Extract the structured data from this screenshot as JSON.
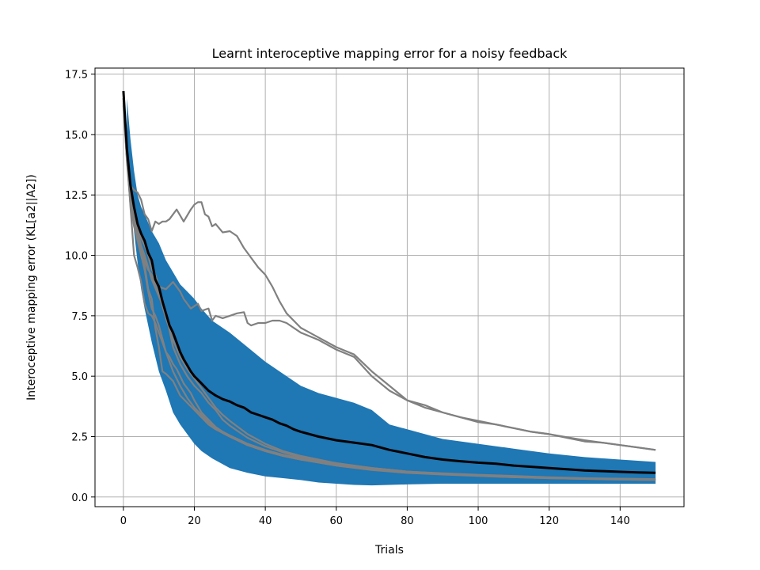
{
  "chart_data": {
    "type": "line",
    "title": "Learnt interoceptive mapping error for a noisy feedback",
    "xlabel": "Trials",
    "ylabel": "Interoceptive mapping error (KL[a2||A2])",
    "xlim": [
      -8,
      158
    ],
    "ylim": [
      -0.4,
      17.75
    ],
    "xticks": [
      0,
      20,
      40,
      60,
      80,
      100,
      120,
      140
    ],
    "yticks": [
      0.0,
      2.5,
      5.0,
      7.5,
      10.0,
      12.5,
      15.0,
      17.5
    ],
    "xtick_labels": [
      "0",
      "20",
      "40",
      "60",
      "80",
      "100",
      "120",
      "140"
    ],
    "ytick_labels": [
      "0.0",
      "2.5",
      "5.0",
      "7.5",
      "10.0",
      "12.5",
      "15.0",
      "17.5"
    ],
    "grid": true,
    "colors": {
      "band": "#1f77b4",
      "individual": "#808080",
      "mean": "#000000",
      "grid": "#b0b0b0"
    },
    "band": {
      "x": [
        1,
        2,
        3,
        4,
        5,
        6,
        8,
        10,
        12,
        14,
        16,
        18,
        20,
        22,
        25,
        30,
        35,
        40,
        45,
        50,
        55,
        60,
        65,
        70,
        75,
        80,
        90,
        100,
        110,
        120,
        130,
        140,
        150
      ],
      "lower": [
        14.5,
        12.8,
        11.0,
        9.7,
        8.6,
        7.8,
        6.4,
        5.2,
        4.4,
        3.5,
        3.0,
        2.6,
        2.2,
        1.9,
        1.6,
        1.2,
        1.0,
        0.85,
        0.78,
        0.7,
        0.6,
        0.55,
        0.5,
        0.48,
        0.5,
        0.52,
        0.55,
        0.55,
        0.55,
        0.55,
        0.55,
        0.55,
        0.55
      ],
      "upper": [
        16.5,
        14.8,
        13.5,
        12.5,
        12.0,
        11.7,
        11.0,
        10.5,
        9.8,
        9.3,
        8.8,
        8.5,
        8.2,
        7.8,
        7.3,
        6.8,
        6.2,
        5.6,
        5.1,
        4.6,
        4.3,
        4.1,
        3.9,
        3.6,
        3.0,
        2.8,
        2.4,
        2.2,
        2.0,
        1.8,
        1.65,
        1.55,
        1.45
      ]
    },
    "series": [
      {
        "role": "run",
        "x": [
          0,
          1,
          2,
          3,
          4,
          5,
          6,
          7,
          8,
          9,
          10,
          11,
          12,
          13,
          15,
          17,
          19,
          20,
          21,
          22,
          23,
          24,
          25,
          26,
          28,
          30,
          32,
          34,
          36,
          38,
          40,
          42,
          44,
          46,
          48,
          50,
          55,
          60,
          65,
          70,
          75,
          80,
          85,
          90,
          95,
          100,
          105,
          110,
          115,
          120,
          125,
          130,
          135,
          140,
          145,
          150
        ],
        "y": [
          16.5,
          14.0,
          12.9,
          12.7,
          12.6,
          12.3,
          11.7,
          11.5,
          11.0,
          11.4,
          11.3,
          11.4,
          11.4,
          11.5,
          11.9,
          11.4,
          11.9,
          12.1,
          12.2,
          12.2,
          11.7,
          11.6,
          11.2,
          11.3,
          10.95,
          11.0,
          10.8,
          10.3,
          9.9,
          9.5,
          9.2,
          8.7,
          8.1,
          7.6,
          7.3,
          7.0,
          6.6,
          6.2,
          5.9,
          5.2,
          4.6,
          4.0,
          3.8,
          3.5,
          3.3,
          3.1,
          3.0,
          2.85,
          2.7,
          2.6,
          2.45,
          2.3,
          2.25,
          2.15,
          2.05,
          1.95
        ]
      },
      {
        "role": "run",
        "x": [
          0,
          1,
          2,
          3,
          4,
          5,
          6,
          7,
          8,
          9,
          10,
          12,
          14,
          16,
          17,
          18,
          19,
          20,
          21,
          22,
          23,
          24,
          25,
          26,
          28,
          30,
          32,
          34,
          35,
          36,
          38,
          40,
          42,
          44,
          46,
          48,
          50,
          55,
          60,
          65,
          70,
          75,
          80,
          85,
          90,
          95,
          100,
          105,
          110,
          115,
          120,
          130,
          140,
          150
        ],
        "y": [
          16.5,
          14.5,
          12.6,
          11.8,
          11.3,
          10.7,
          10.4,
          10.0,
          9.4,
          9.2,
          8.7,
          8.6,
          8.9,
          8.5,
          8.2,
          8.0,
          7.8,
          7.9,
          8.0,
          7.7,
          7.75,
          7.8,
          7.3,
          7.5,
          7.4,
          7.5,
          7.6,
          7.65,
          7.2,
          7.1,
          7.2,
          7.2,
          7.3,
          7.3,
          7.2,
          7.0,
          6.8,
          6.5,
          6.1,
          5.8,
          5.0,
          4.4,
          4.0,
          3.7,
          3.5,
          3.3,
          3.15,
          3.0,
          2.85,
          2.7,
          2.6,
          2.35,
          2.15,
          1.95
        ]
      },
      {
        "role": "run",
        "x": [
          0,
          1,
          2,
          3,
          4,
          5,
          6,
          7,
          8,
          9,
          10,
          11,
          12,
          13,
          14,
          15,
          16,
          17,
          18,
          19,
          20,
          22,
          24,
          26,
          28,
          30,
          35,
          40,
          45,
          50,
          55,
          60,
          70,
          80,
          90,
          100,
          110,
          120,
          130,
          140,
          150
        ],
        "y": [
          16.5,
          14.2,
          12.0,
          10.0,
          9.5,
          8.9,
          8.0,
          7.6,
          7.5,
          7.2,
          6.8,
          6.4,
          6.0,
          5.8,
          5.5,
          5.3,
          5.0,
          4.7,
          4.5,
          4.3,
          4.0,
          3.5,
          3.2,
          2.9,
          2.7,
          2.55,
          2.2,
          1.95,
          1.75,
          1.6,
          1.5,
          1.4,
          1.2,
          1.05,
          0.98,
          0.92,
          0.87,
          0.82,
          0.78,
          0.76,
          0.74
        ]
      },
      {
        "role": "run",
        "x": [
          0,
          1,
          2,
          3,
          4,
          5,
          6,
          7,
          8,
          9,
          10,
          11,
          12,
          14,
          16,
          18,
          20,
          22,
          24,
          26,
          28,
          30,
          35,
          40,
          45,
          50,
          60,
          70,
          80,
          90,
          100,
          110,
          120,
          130,
          140,
          150
        ],
        "y": [
          16.3,
          14.0,
          12.2,
          11.5,
          10.8,
          10.3,
          9.6,
          8.6,
          8.2,
          7.0,
          6.2,
          5.2,
          5.1,
          4.8,
          4.2,
          3.9,
          3.6,
          3.3,
          3.0,
          2.8,
          2.65,
          2.5,
          2.15,
          1.9,
          1.7,
          1.55,
          1.3,
          1.15,
          1.0,
          0.95,
          0.88,
          0.82,
          0.78,
          0.75,
          0.72,
          0.7
        ]
      },
      {
        "role": "run",
        "x": [
          0,
          1,
          2,
          3,
          4,
          5,
          6,
          7,
          8,
          10,
          12,
          14,
          16,
          18,
          20,
          22,
          24,
          26,
          28,
          30,
          32,
          35,
          40,
          45,
          50,
          60,
          70,
          80,
          90,
          100,
          110,
          120,
          130,
          140,
          150
        ],
        "y": [
          16.4,
          14.1,
          12.4,
          11.6,
          11.0,
          10.4,
          10.0,
          9.5,
          9.0,
          8.3,
          7.6,
          6.2,
          5.5,
          5.0,
          4.6,
          4.3,
          3.9,
          3.6,
          3.2,
          2.95,
          2.75,
          2.45,
          2.1,
          1.85,
          1.65,
          1.35,
          1.2,
          1.05,
          0.97,
          0.9,
          0.85,
          0.8,
          0.77,
          0.75,
          0.73
        ]
      },
      {
        "role": "run",
        "x": [
          0,
          1,
          2,
          3,
          4,
          5,
          6,
          7,
          8,
          9,
          10,
          12,
          14,
          16,
          18,
          20,
          22,
          24,
          26,
          28,
          30,
          35,
          40,
          45,
          50,
          60,
          70,
          80,
          90,
          100,
          110,
          120,
          130,
          140,
          150
        ],
        "y": [
          16.5,
          14.3,
          12.3,
          11.4,
          10.9,
          10.2,
          9.8,
          9.4,
          9.2,
          8.8,
          8.4,
          7.4,
          6.5,
          5.8,
          5.3,
          4.9,
          4.5,
          4.1,
          3.7,
          3.4,
          3.15,
          2.6,
          2.2,
          1.9,
          1.7,
          1.4,
          1.2,
          1.05,
          0.97,
          0.9,
          0.84,
          0.79,
          0.76,
          0.74,
          0.72
        ]
      },
      {
        "role": "run",
        "x": [
          0,
          1,
          2,
          3,
          4,
          5,
          6,
          7,
          8,
          9,
          10,
          12,
          14,
          16,
          18,
          20,
          22,
          24,
          26,
          28,
          30,
          35,
          40,
          45,
          50,
          60,
          70,
          80,
          90,
          100,
          110,
          120,
          130,
          140,
          150
        ],
        "y": [
          16.2,
          13.9,
          12.1,
          11.2,
          10.6,
          10.0,
          9.4,
          8.5,
          7.8,
          7.5,
          7.1,
          6.0,
          5.2,
          4.6,
          4.1,
          3.7,
          3.4,
          3.1,
          2.85,
          2.65,
          2.5,
          2.15,
          1.9,
          1.7,
          1.55,
          1.3,
          1.12,
          1.0,
          0.93,
          0.87,
          0.82,
          0.78,
          0.75,
          0.72,
          0.7
        ]
      },
      {
        "role": "mean",
        "x": [
          0,
          1,
          2,
          3,
          4,
          5,
          6,
          7,
          8,
          9,
          10,
          11,
          12,
          13,
          14,
          15,
          16,
          17,
          18,
          19,
          20,
          22,
          24,
          26,
          28,
          30,
          32,
          34,
          36,
          38,
          40,
          42,
          44,
          46,
          48,
          50,
          55,
          60,
          65,
          70,
          75,
          80,
          85,
          90,
          95,
          100,
          105,
          110,
          115,
          120,
          125,
          130,
          135,
          140,
          145,
          150
        ],
        "y": [
          16.8,
          14.4,
          12.9,
          12.0,
          11.3,
          10.9,
          10.6,
          10.1,
          9.8,
          9.0,
          8.7,
          8.1,
          7.6,
          7.1,
          6.8,
          6.4,
          6.0,
          5.7,
          5.45,
          5.2,
          5.0,
          4.7,
          4.4,
          4.2,
          4.05,
          3.95,
          3.8,
          3.7,
          3.5,
          3.4,
          3.3,
          3.2,
          3.05,
          2.95,
          2.8,
          2.7,
          2.5,
          2.35,
          2.25,
          2.15,
          1.95,
          1.8,
          1.65,
          1.55,
          1.48,
          1.42,
          1.38,
          1.3,
          1.25,
          1.2,
          1.15,
          1.1,
          1.07,
          1.04,
          1.02,
          1.0
        ]
      }
    ]
  }
}
